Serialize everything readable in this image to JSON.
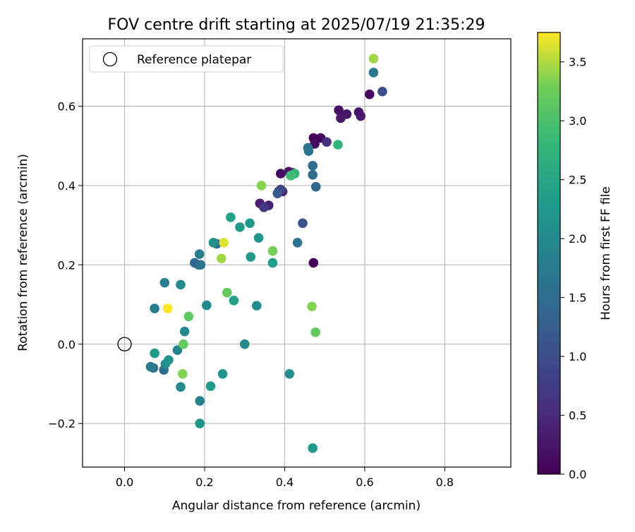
{
  "chart_data": {
    "type": "scatter",
    "title": "FOV centre drift starting at 2025/07/19 21:35:29",
    "xlabel": "Angular distance from reference (arcmin)",
    "ylabel": "Rotation from reference (arcmin)",
    "xlim": [
      -0.105,
      0.965
    ],
    "ylim": [
      -0.31,
      0.77
    ],
    "xticks": [
      {
        "v": 0.0,
        "label": "0.0"
      },
      {
        "v": 0.2,
        "label": "0.2"
      },
      {
        "v": 0.4,
        "label": "0.4"
      },
      {
        "v": 0.6,
        "label": "0.6"
      },
      {
        "v": 0.8,
        "label": "0.8"
      }
    ],
    "yticks": [
      {
        "v": -0.2,
        "label": "−0.2"
      },
      {
        "v": 0.0,
        "label": "0.0"
      },
      {
        "v": 0.2,
        "label": "0.2"
      },
      {
        "v": 0.4,
        "label": "0.4"
      },
      {
        "v": 0.6,
        "label": "0.6"
      }
    ],
    "grid": true,
    "legend": {
      "placement": "top-left",
      "label": "Reference platepar"
    },
    "reference": {
      "x": 0.0,
      "y": 0.0
    },
    "colorbar": {
      "label": "Hours from first FF file",
      "colormap": "viridis",
      "range": [
        0.0,
        3.75
      ],
      "ticks": [
        {
          "v": 0.0,
          "label": "0.0"
        },
        {
          "v": 0.5,
          "label": "0.5"
        },
        {
          "v": 1.0,
          "label": "1.0"
        },
        {
          "v": 1.5,
          "label": "1.5"
        },
        {
          "v": 2.0,
          "label": "2.0"
        },
        {
          "v": 2.5,
          "label": "2.5"
        },
        {
          "v": 3.0,
          "label": "3.0"
        },
        {
          "v": 3.5,
          "label": "3.5"
        }
      ]
    },
    "points": [
      {
        "x": 0.472,
        "y": 0.52,
        "c": 0.05
      },
      {
        "x": 0.49,
        "y": 0.52,
        "c": 0.1
      },
      {
        "x": 0.475,
        "y": 0.505,
        "c": 0.15
      },
      {
        "x": 0.472,
        "y": 0.205,
        "c": 0.05
      },
      {
        "x": 0.535,
        "y": 0.59,
        "c": 0.2
      },
      {
        "x": 0.555,
        "y": 0.58,
        "c": 0.25
      },
      {
        "x": 0.54,
        "y": 0.57,
        "c": 0.3
      },
      {
        "x": 0.585,
        "y": 0.585,
        "c": 0.25
      },
      {
        "x": 0.59,
        "y": 0.575,
        "c": 0.3
      },
      {
        "x": 0.612,
        "y": 0.63,
        "c": 0.1
      },
      {
        "x": 0.505,
        "y": 0.51,
        "c": 0.6
      },
      {
        "x": 0.39,
        "y": 0.43,
        "c": 0.15
      },
      {
        "x": 0.41,
        "y": 0.435,
        "c": 0.2
      },
      {
        "x": 0.42,
        "y": 0.432,
        "c": 0.3
      },
      {
        "x": 0.385,
        "y": 0.385,
        "c": 0.25
      },
      {
        "x": 0.395,
        "y": 0.385,
        "c": 0.5
      },
      {
        "x": 0.338,
        "y": 0.355,
        "c": 0.35
      },
      {
        "x": 0.36,
        "y": 0.35,
        "c": 0.4
      },
      {
        "x": 0.348,
        "y": 0.345,
        "c": 0.7
      },
      {
        "x": 0.39,
        "y": 0.39,
        "c": 0.9
      },
      {
        "x": 0.382,
        "y": 0.38,
        "c": 1.2
      },
      {
        "x": 0.644,
        "y": 0.637,
        "c": 1.0
      },
      {
        "x": 0.445,
        "y": 0.305,
        "c": 1.1
      },
      {
        "x": 0.458,
        "y": 0.495,
        "c": 1.55
      },
      {
        "x": 0.46,
        "y": 0.487,
        "c": 1.65
      },
      {
        "x": 0.47,
        "y": 0.45,
        "c": 1.5
      },
      {
        "x": 0.47,
        "y": 0.427,
        "c": 1.5
      },
      {
        "x": 0.478,
        "y": 0.397,
        "c": 1.4
      },
      {
        "x": 0.432,
        "y": 0.256,
        "c": 1.6
      },
      {
        "x": 0.622,
        "y": 0.685,
        "c": 1.7
      },
      {
        "x": 0.175,
        "y": 0.205,
        "c": 1.45
      },
      {
        "x": 0.185,
        "y": 0.2,
        "c": 1.35
      },
      {
        "x": 0.19,
        "y": 0.2,
        "c": 1.6
      },
      {
        "x": 0.187,
        "y": 0.227,
        "c": 1.8
      },
      {
        "x": 0.23,
        "y": 0.253,
        "c": 1.5
      },
      {
        "x": 0.222,
        "y": 0.256,
        "c": 2.1
      },
      {
        "x": 0.098,
        "y": -0.065,
        "c": 1.5
      },
      {
        "x": 0.072,
        "y": -0.06,
        "c": 1.55
      },
      {
        "x": 0.065,
        "y": -0.057,
        "c": 1.75
      },
      {
        "x": 0.075,
        "y": 0.09,
        "c": 1.8
      },
      {
        "x": 0.1,
        "y": 0.155,
        "c": 1.85
      },
      {
        "x": 0.14,
        "y": 0.15,
        "c": 2.0
      },
      {
        "x": 0.132,
        "y": -0.015,
        "c": 1.9
      },
      {
        "x": 0.102,
        "y": -0.05,
        "c": 2.05
      },
      {
        "x": 0.11,
        "y": -0.04,
        "c": 2.2
      },
      {
        "x": 0.075,
        "y": -0.023,
        "c": 2.3
      },
      {
        "x": 0.15,
        "y": 0.032,
        "c": 2.0
      },
      {
        "x": 0.14,
        "y": -0.108,
        "c": 2.0
      },
      {
        "x": 0.188,
        "y": -0.143,
        "c": 1.9
      },
      {
        "x": 0.188,
        "y": -0.2,
        "c": 2.2
      },
      {
        "x": 0.205,
        "y": 0.098,
        "c": 2.0
      },
      {
        "x": 0.215,
        "y": -0.106,
        "c": 2.3
      },
      {
        "x": 0.245,
        "y": -0.075,
        "c": 2.2
      },
      {
        "x": 0.3,
        "y": 0.0,
        "c": 2.0
      },
      {
        "x": 0.33,
        "y": 0.097,
        "c": 2.05
      },
      {
        "x": 0.265,
        "y": 0.32,
        "c": 2.4
      },
      {
        "x": 0.288,
        "y": 0.295,
        "c": 2.3
      },
      {
        "x": 0.313,
        "y": 0.305,
        "c": 2.25
      },
      {
        "x": 0.335,
        "y": 0.268,
        "c": 2.2
      },
      {
        "x": 0.315,
        "y": 0.22,
        "c": 2.3
      },
      {
        "x": 0.37,
        "y": 0.205,
        "c": 2.35
      },
      {
        "x": 0.273,
        "y": 0.11,
        "c": 2.4
      },
      {
        "x": 0.412,
        "y": -0.075,
        "c": 2.1
      },
      {
        "x": 0.47,
        "y": -0.262,
        "c": 2.25
      },
      {
        "x": 0.425,
        "y": 0.43,
        "c": 2.8
      },
      {
        "x": 0.415,
        "y": 0.425,
        "c": 2.9
      },
      {
        "x": 0.533,
        "y": 0.503,
        "c": 2.75
      },
      {
        "x": 0.256,
        "y": 0.13,
        "c": 3.2
      },
      {
        "x": 0.16,
        "y": 0.07,
        "c": 3.15
      },
      {
        "x": 0.147,
        "y": 0.0,
        "c": 3.2
      },
      {
        "x": 0.145,
        "y": -0.075,
        "c": 3.35
      },
      {
        "x": 0.342,
        "y": 0.4,
        "c": 3.35
      },
      {
        "x": 0.37,
        "y": 0.235,
        "c": 3.3
      },
      {
        "x": 0.242,
        "y": 0.216,
        "c": 3.45
      },
      {
        "x": 0.248,
        "y": 0.256,
        "c": 3.65
      },
      {
        "x": 0.108,
        "y": 0.09,
        "c": 3.75
      },
      {
        "x": 0.468,
        "y": 0.095,
        "c": 3.35
      },
      {
        "x": 0.477,
        "y": 0.03,
        "c": 3.2
      },
      {
        "x": 0.622,
        "y": 0.72,
        "c": 3.45
      }
    ]
  }
}
